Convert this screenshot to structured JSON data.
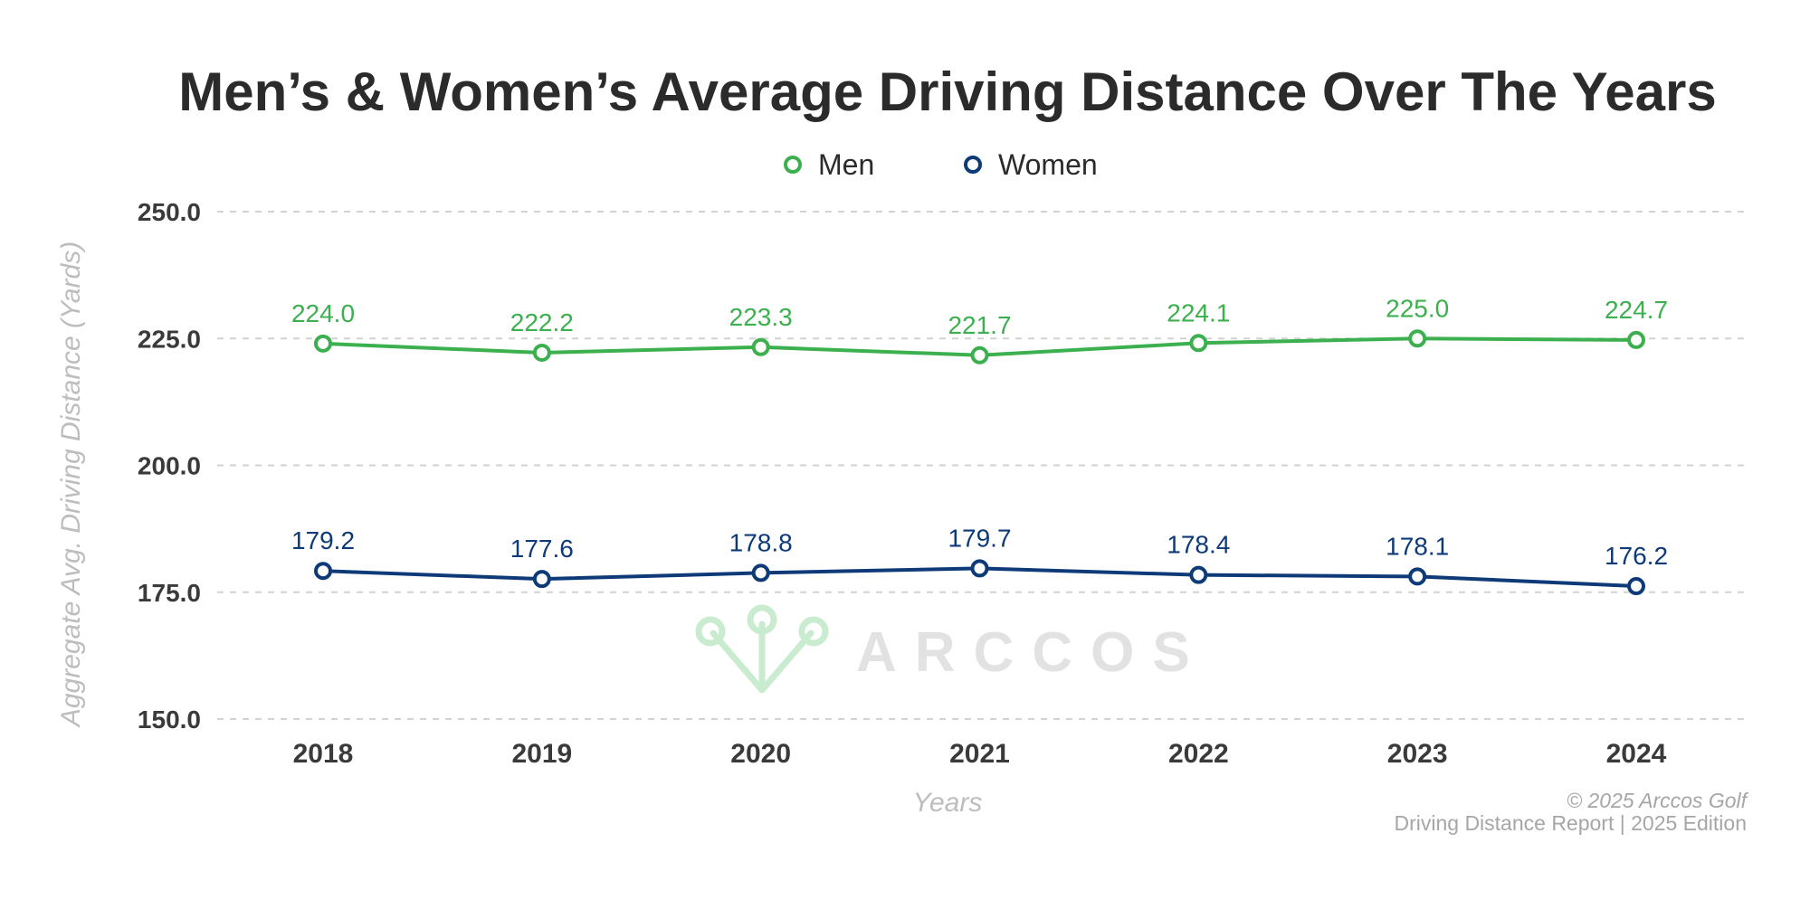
{
  "chart_data": {
    "type": "line",
    "title": "Men’s & Women’s Average Driving Distance Over The Years",
    "xlabel": "Years",
    "ylabel": "Aggregate Avg. Driving Distance (Yards)",
    "categories": [
      "2018",
      "2019",
      "2020",
      "2021",
      "2022",
      "2023",
      "2024"
    ],
    "ylim": [
      150,
      250
    ],
    "yticks": [
      250.0,
      225.0,
      200.0,
      175.0,
      150.0
    ],
    "ytick_labels": [
      "250.0",
      "225.0",
      "200.0",
      "175.0",
      "150.0"
    ],
    "grid": true,
    "legend_position": "top-center",
    "series": [
      {
        "name": "Men",
        "color": "#3cb04e",
        "values": [
          224.0,
          222.2,
          223.3,
          221.7,
          224.1,
          225.0,
          224.7
        ],
        "labels": [
          "224.0",
          "222.2",
          "223.3",
          "221.7",
          "224.1",
          "225.0",
          "224.7"
        ]
      },
      {
        "name": "Women",
        "color": "#0e3a78",
        "values": [
          179.2,
          177.6,
          178.8,
          179.7,
          178.4,
          178.1,
          176.2
        ],
        "labels": [
          "179.2",
          "177.6",
          "178.8",
          "179.7",
          "178.4",
          "178.1",
          "176.2"
        ]
      }
    ]
  },
  "watermark": {
    "text": "ARCCOS",
    "logo_color": "#c9ebcf"
  },
  "footer": {
    "copyright": "© 2025 Arccos Golf",
    "edition": "Driving Distance Report | 2025 Edition"
  }
}
